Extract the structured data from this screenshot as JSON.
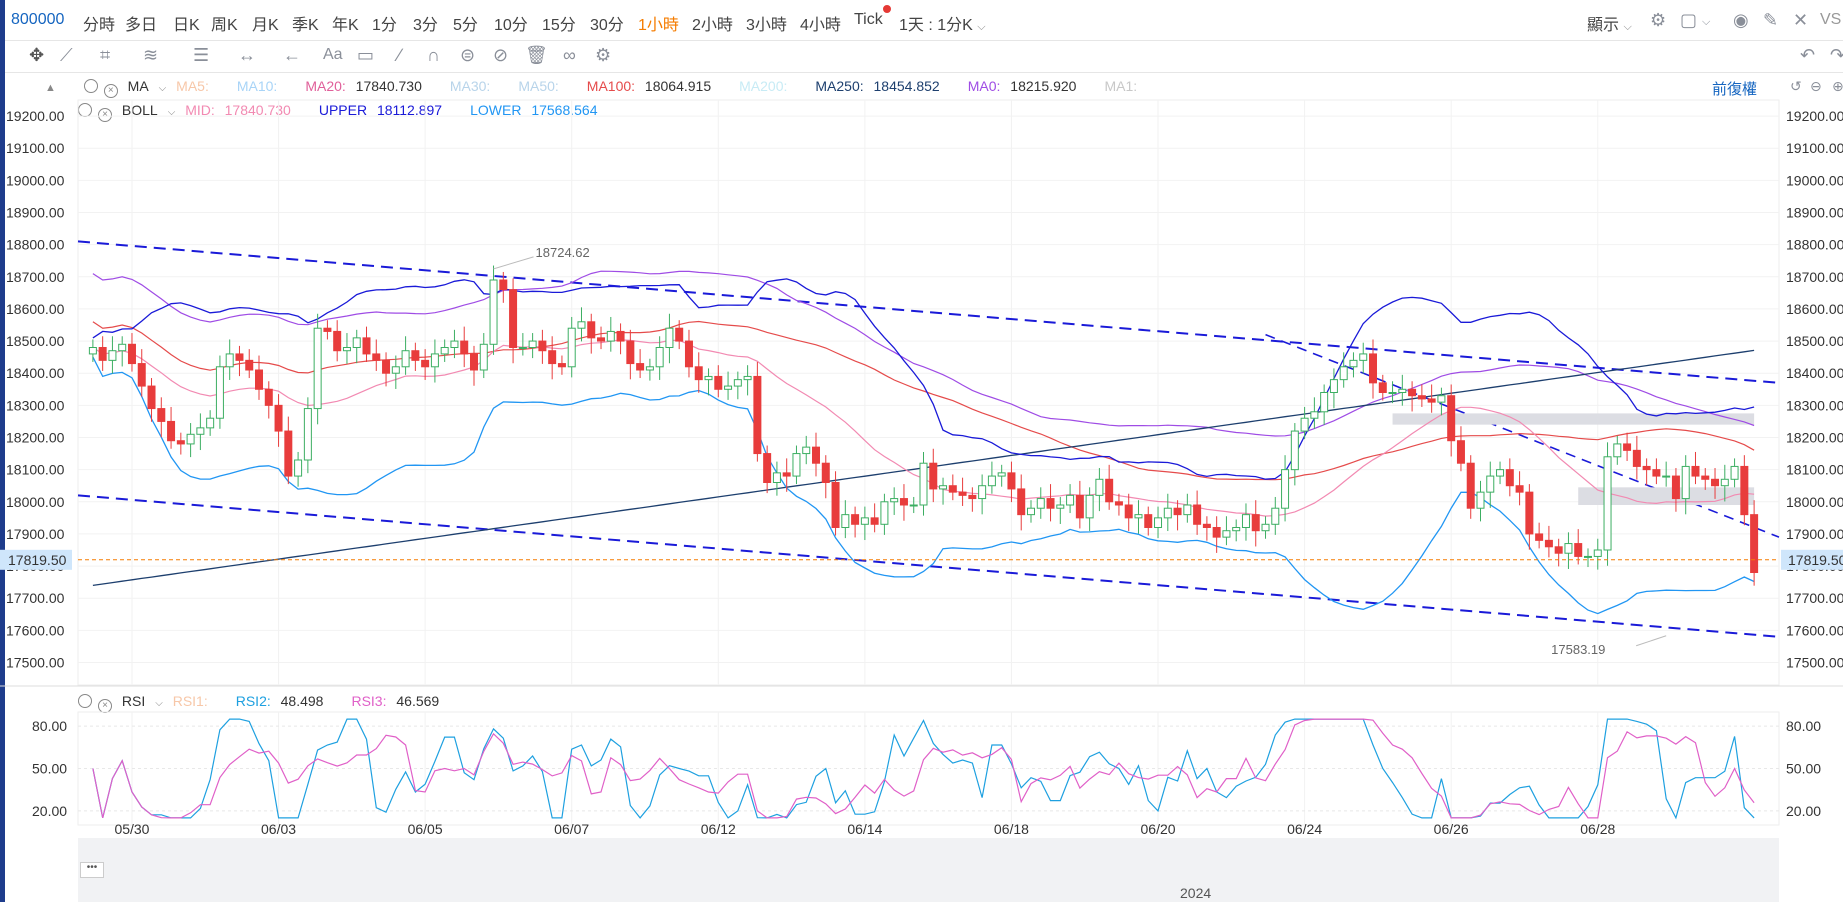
{
  "toolbar": {
    "symbol": "800000",
    "periods": [
      "分時",
      "多日",
      "日K",
      "周K",
      "月K",
      "季K",
      "年K",
      "1分",
      "3分",
      "5分",
      "10分",
      "15分",
      "30分",
      "1小時",
      "2小時",
      "3小時",
      "4小時",
      "Tick"
    ],
    "active_period": "1小時",
    "range_select": "1天 : 1分K",
    "display_label": "顯示",
    "right_label": "VS"
  },
  "ma": {
    "label": "MA",
    "items": [
      {
        "name": "MA5:",
        "value": "",
        "color": "#f7c7a8"
      },
      {
        "name": "MA10:",
        "value": "",
        "color": "#a8d4f7"
      },
      {
        "name": "MA20:",
        "value": "17840.730",
        "color": "#e0609a"
      },
      {
        "name": "MA30:",
        "value": "",
        "color": "#b8d4ea"
      },
      {
        "name": "MA50:",
        "value": "",
        "color": "#b8d4ea"
      },
      {
        "name": "MA100:",
        "value": "18064.915",
        "color": "#e54b4b"
      },
      {
        "name": "MA200:",
        "value": "",
        "color": "#c7ebf5"
      },
      {
        "name": "MA250:",
        "value": "18454.852",
        "color": "#1d3f6e"
      },
      {
        "name": "MA0:",
        "value": "18215.920",
        "color": "#9f4ce5"
      },
      {
        "name": "MA1:",
        "value": "",
        "color": "#c8c8c8"
      }
    ],
    "restore_label": "前復權"
  },
  "boll": {
    "label": "BOLL",
    "items": [
      {
        "name": "MID:",
        "value": "17840.730",
        "color": "#f28ab2"
      },
      {
        "name": "UPPER",
        "value": "18112.897",
        "color": "#1a1ad8"
      },
      {
        "name": "LOWER",
        "value": "17568.564",
        "color": "#2196f3"
      }
    ]
  },
  "rsi": {
    "label": "RSI",
    "items": [
      {
        "name": "RSI1:",
        "value": "",
        "color": "#f7c7a8"
      },
      {
        "name": "RSI2:",
        "value": "48.498",
        "color": "#1ea0e0"
      },
      {
        "name": "RSI3:",
        "value": "46.569",
        "color": "#e060c8"
      }
    ],
    "ticks": [
      "80.00",
      "50.00",
      "20.00"
    ]
  },
  "price_axis": {
    "ticks": [
      "19200.00",
      "19100.00",
      "19000.00",
      "18900.00",
      "18800.00",
      "18700.00",
      "18600.00",
      "18500.00",
      "18400.00",
      "18300.00",
      "18200.00",
      "18100.00",
      "18000.00",
      "17900.00",
      "17800.00",
      "17700.00",
      "17600.00",
      "17500.00"
    ],
    "current": "17819.50"
  },
  "date_axis": [
    "05/30",
    "06/03",
    "06/05",
    "06/07",
    "06/12",
    "06/14",
    "06/18",
    "06/20",
    "06/24",
    "06/26",
    "06/28"
  ],
  "annotations": {
    "high": "18724.62",
    "low": "17583.19"
  },
  "navigator": {
    "year": "2024",
    "button": "•••"
  },
  "colors": {
    "up": "#3cae62",
    "down": "#e83c3c",
    "accent": "#f57c00",
    "link": "#1565c0"
  },
  "chart_data": {
    "type": "candlestick",
    "x": [
      1,
      2,
      3,
      4,
      5,
      6,
      7,
      8,
      9,
      10,
      11,
      12,
      13,
      14,
      15,
      16,
      17,
      18,
      19,
      20,
      21,
      22,
      23,
      24,
      25,
      26,
      27,
      28,
      29,
      30,
      31,
      32,
      33,
      34,
      35,
      36,
      37,
      38,
      39,
      40,
      41,
      42,
      43,
      44,
      45,
      46,
      47,
      48,
      49,
      50,
      51,
      52,
      53,
      54,
      55,
      56,
      57,
      58,
      59,
      60,
      61,
      62,
      63,
      64,
      65,
      66,
      67,
      68,
      69,
      70,
      71,
      72,
      73,
      74,
      75,
      76,
      77,
      78,
      79,
      80,
      81,
      82,
      83,
      84,
      85,
      86,
      87,
      88,
      89,
      90,
      91,
      92,
      93,
      94,
      95,
      96,
      97,
      98,
      99,
      100,
      101,
      102,
      103,
      104,
      105,
      106,
      107,
      108,
      109,
      110,
      111,
      112,
      113,
      114,
      115,
      116,
      117,
      118,
      119,
      120,
      121,
      122,
      123,
      124,
      125,
      126,
      127,
      128,
      129,
      130,
      131,
      132,
      133,
      134,
      135,
      136,
      137,
      138,
      139,
      140,
      141,
      142,
      143,
      144,
      145,
      146,
      147,
      148,
      149,
      150,
      151,
      152,
      153,
      154,
      155,
      156,
      157,
      158,
      159,
      160,
      161,
      162,
      163,
      164,
      165,
      166,
      167,
      168,
      169,
      170,
      171,
      172
    ],
    "close_series": [
      18480,
      18440,
      18470,
      18490,
      18430,
      18360,
      18290,
      18250,
      18190,
      18180,
      18210,
      18230,
      18260,
      18420,
      18460,
      18440,
      18410,
      18350,
      18300,
      18220,
      18080,
      18130,
      18290,
      18540,
      18530,
      18470,
      18480,
      18510,
      18460,
      18440,
      18400,
      18420,
      18470,
      18440,
      18420,
      18460,
      18480,
      18500,
      18460,
      18410,
      18490,
      18690,
      18660,
      18480,
      18480,
      18500,
      18470,
      18430,
      18420,
      18540,
      18560,
      18510,
      18500,
      18530,
      18500,
      18430,
      18410,
      18420,
      18480,
      18540,
      18500,
      18420,
      18380,
      18390,
      18350,
      18360,
      18380,
      18390,
      18150,
      18060,
      18090,
      18080,
      18150,
      18170,
      18120,
      18060,
      17920,
      17960,
      17930,
      17950,
      17930,
      18000,
      18010,
      17990,
      17990,
      18120,
      18040,
      18050,
      18030,
      18020,
      18010,
      18050,
      18080,
      18090,
      18040,
      17960,
      17980,
      18010,
      17980,
      17990,
      18020,
      17950,
      18020,
      18070,
      18000,
      17990,
      17950,
      17960,
      17920,
      17950,
      17980,
      17960,
      17990,
      17930,
      17920,
      17890,
      17910,
      17920,
      17960,
      17910,
      17930,
      17980,
      18100,
      18220,
      18260,
      18280,
      18340,
      18380,
      18420,
      18440,
      18460,
      18370,
      18340,
      18340,
      18350,
      18330,
      18320,
      18310,
      18330,
      18190,
      18120,
      17980,
      18030,
      18080,
      18100,
      18050,
      18030,
      17900,
      17880,
      17860,
      17840,
      17870,
      17830,
      17830,
      17850,
      18140,
      18180,
      18160,
      18110,
      18100,
      18080,
      18080,
      18010,
      18110,
      18080,
      18070,
      18050,
      18070,
      18110,
      17960,
      17780
    ]
  }
}
